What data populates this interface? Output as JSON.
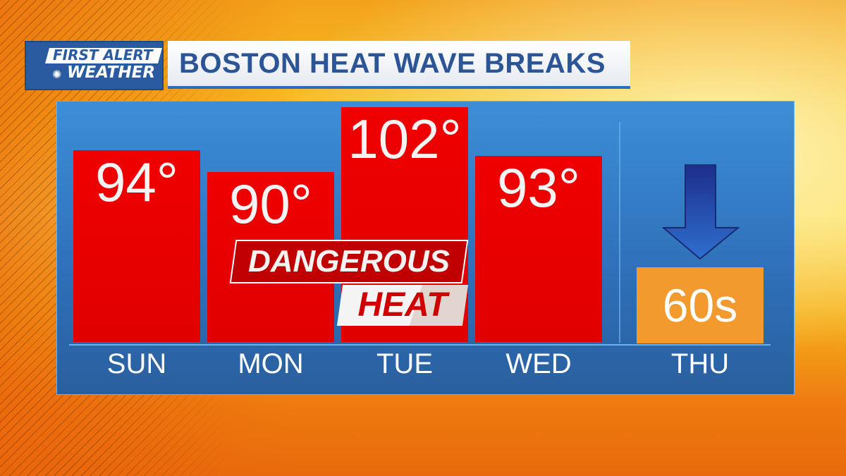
{
  "logo": {
    "line1": "FIRST ALERT",
    "line2": "WEATHER"
  },
  "title": "BOSTON HEAT WAVE BREAKS",
  "banner": {
    "line1": "DANGEROUS",
    "line2": "HEAT"
  },
  "colors": {
    "bar": "#e80000",
    "panel": "#3380cc",
    "thu_box": "#f39a2e",
    "title_text": "#2b5597"
  },
  "chart_data": {
    "type": "bar",
    "title": "BOSTON HEAT WAVE BREAKS",
    "categories": [
      "SUN",
      "MON",
      "TUE",
      "WED"
    ],
    "values": [
      94,
      90,
      102,
      93
    ],
    "labels": [
      "94°",
      "90°",
      "102°",
      "93°"
    ],
    "unit": "°F",
    "forecast": {
      "day": "THU",
      "label": "60s",
      "icon": "down-arrow-icon"
    }
  }
}
